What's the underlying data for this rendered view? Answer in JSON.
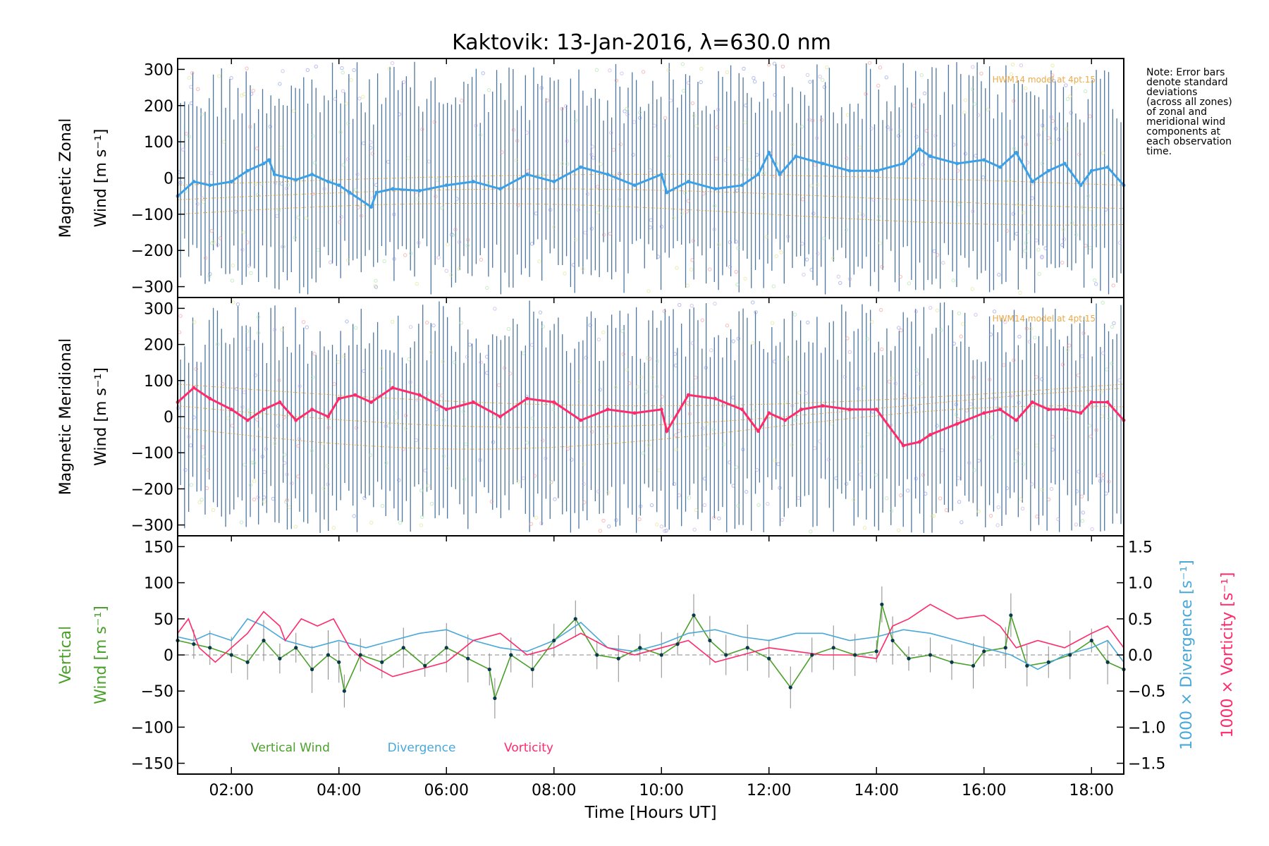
{
  "title": "Kaktovik: 13-Jan-2016, λ=630.0 nm",
  "note_lines": [
    "Note: Error bars",
    "denote standard",
    "deviations",
    "(across all zones)",
    "of zonal and",
    "meridional wind",
    "components at",
    "each observation",
    "time."
  ],
  "model_label": "HWM14 model at 4pt.15",
  "colors": {
    "zonal": "#3aa0e8",
    "zonal_dark": "#1010d0",
    "meridional": "#ff2a6a",
    "meridional_dark": "#cc0000",
    "errbar": "#2f5f8f",
    "vertical": "#4aa02a",
    "divergence": "#4aa8d8",
    "vorticity": "#ff2a6a",
    "model": "#e8941a",
    "points": "#0a3a4a"
  },
  "chart_data": [
    {
      "type": "line",
      "panel": "zonal",
      "ylabel_lines": [
        "Magnetic Zonal",
        "Wind [m s⁻¹]"
      ],
      "ylim": [
        -330,
        330
      ],
      "yticks": [
        "300",
        "200",
        "100",
        "0",
        "−100",
        "−200",
        "−300"
      ],
      "ytick_values": [
        300,
        200,
        100,
        0,
        -100,
        -200,
        -300
      ],
      "xlim": [
        1.0,
        18.6
      ],
      "series": [
        {
          "x": [
            1.0,
            1.3,
            1.6,
            2.0,
            2.3,
            2.6,
            2.7,
            2.8,
            3.2,
            3.5,
            3.8,
            4.0,
            4.2,
            4.6,
            4.7,
            5.0,
            5.5,
            6.0,
            6.5,
            7.0,
            7.5,
            8.0,
            8.5,
            9.0,
            9.5,
            10.0,
            10.1,
            10.5,
            11.0,
            11.5,
            11.8,
            12.0,
            12.2,
            12.5,
            13.0,
            13.5,
            14.0,
            14.5,
            14.8,
            15.0,
            15.5,
            16.0,
            16.3,
            16.6,
            16.9,
            17.2,
            17.5,
            17.8,
            18.0,
            18.3,
            18.6
          ],
          "y": [
            -50,
            -10,
            -20,
            -10,
            20,
            40,
            50,
            10,
            -5,
            10,
            -10,
            -20,
            -40,
            -80,
            -40,
            -30,
            -35,
            -20,
            -10,
            -30,
            10,
            -10,
            30,
            10,
            -20,
            10,
            -40,
            -10,
            -30,
            -20,
            10,
            70,
            10,
            60,
            40,
            20,
            20,
            40,
            80,
            60,
            40,
            50,
            30,
            70,
            -10,
            20,
            40,
            -20,
            20,
            30,
            -20
          ]
        }
      ]
    },
    {
      "type": "line",
      "panel": "meridional",
      "ylabel_lines": [
        "Magnetic Meridional",
        "Wind [m s⁻¹]"
      ],
      "ylim": [
        -330,
        330
      ],
      "yticks": [
        "300",
        "200",
        "100",
        "0",
        "−100",
        "−200",
        "−300"
      ],
      "ytick_values": [
        300,
        200,
        100,
        0,
        -100,
        -200,
        -300
      ],
      "xlim": [
        1.0,
        18.6
      ],
      "series": [
        {
          "x": [
            1.0,
            1.3,
            1.6,
            2.0,
            2.3,
            2.6,
            2.9,
            3.2,
            3.5,
            3.8,
            4.0,
            4.3,
            4.6,
            5.0,
            5.5,
            6.0,
            6.5,
            7.0,
            7.5,
            8.0,
            8.5,
            9.0,
            9.5,
            10.0,
            10.1,
            10.5,
            11.0,
            11.5,
            11.8,
            12.0,
            12.3,
            12.6,
            13.0,
            13.5,
            14.0,
            14.5,
            14.8,
            15.0,
            15.5,
            16.0,
            16.3,
            16.6,
            16.9,
            17.2,
            17.5,
            17.8,
            18.0,
            18.3,
            18.6
          ],
          "y": [
            40,
            80,
            50,
            20,
            -10,
            20,
            40,
            -10,
            20,
            0,
            50,
            60,
            40,
            80,
            60,
            20,
            40,
            0,
            50,
            40,
            -10,
            20,
            10,
            20,
            -40,
            60,
            50,
            20,
            -40,
            10,
            -10,
            20,
            30,
            20,
            20,
            -80,
            -70,
            -50,
            -20,
            10,
            20,
            -10,
            40,
            20,
            20,
            10,
            40,
            40,
            -10
          ]
        }
      ]
    },
    {
      "type": "line",
      "panel": "vertical",
      "ylabel_lines": [
        "Vertical",
        "Wind [m s⁻¹]"
      ],
      "ylabel_right_lines": [
        "1000 × Divergence [s⁻¹]",
        "1000 × Vorticity [s⁻¹]"
      ],
      "ylim": [
        -165,
        165
      ],
      "yticks": [
        "150",
        "100",
        "50",
        "0",
        "−50",
        "−100",
        "−150"
      ],
      "ytick_values": [
        150,
        100,
        50,
        0,
        -50,
        -100,
        -150
      ],
      "y2lim": [
        -1.65,
        1.65
      ],
      "y2ticks": [
        "1.5",
        "1.0",
        "0.5",
        "0.0",
        "−0.5",
        "−1.0",
        "−1.5"
      ],
      "y2tick_values": [
        1.5,
        1.0,
        0.5,
        0.0,
        -0.5,
        -1.0,
        -1.5
      ],
      "xlim": [
        1.0,
        18.6
      ],
      "xticks": [
        "02:00",
        "04:00",
        "06:00",
        "08:00",
        "10:00",
        "12:00",
        "14:00",
        "16:00",
        "18:00"
      ],
      "xtick_values": [
        2,
        4,
        6,
        8,
        10,
        12,
        14,
        16,
        18
      ],
      "xlabel": "Time [Hours UT]",
      "series": [
        {
          "name": "Vertical Wind",
          "x": [
            1.0,
            1.3,
            1.6,
            2.0,
            2.3,
            2.6,
            2.9,
            3.2,
            3.5,
            3.8,
            4.0,
            4.1,
            4.4,
            4.8,
            5.2,
            5.6,
            6.0,
            6.4,
            6.8,
            6.9,
            7.2,
            7.6,
            8.0,
            8.4,
            8.8,
            9.2,
            9.6,
            10.0,
            10.3,
            10.6,
            10.9,
            11.2,
            11.6,
            12.0,
            12.4,
            12.8,
            13.2,
            13.6,
            14.0,
            14.1,
            14.3,
            14.6,
            15.0,
            15.4,
            15.8,
            16.0,
            16.4,
            16.5,
            16.8,
            17.2,
            17.6,
            18.0,
            18.3,
            18.6
          ],
          "y": [
            20,
            15,
            10,
            0,
            -10,
            20,
            -5,
            10,
            -20,
            0,
            -10,
            -50,
            0,
            -10,
            10,
            -15,
            10,
            -5,
            -20,
            -60,
            0,
            -20,
            20,
            50,
            0,
            -5,
            10,
            0,
            15,
            55,
            20,
            0,
            10,
            -5,
            -45,
            0,
            10,
            0,
            5,
            70,
            20,
            -5,
            0,
            -10,
            -15,
            5,
            10,
            55,
            -15,
            -10,
            0,
            20,
            -10,
            -20
          ]
        },
        {
          "name": "Divergence",
          "x": [
            1.0,
            1.3,
            1.6,
            2.0,
            2.3,
            2.6,
            3.0,
            3.5,
            4.0,
            4.5,
            5.0,
            5.5,
            6.0,
            6.5,
            7.0,
            7.5,
            8.0,
            8.5,
            9.0,
            9.5,
            10.0,
            10.5,
            11.0,
            11.5,
            12.0,
            12.5,
            13.0,
            13.5,
            14.0,
            14.5,
            15.0,
            15.5,
            16.0,
            16.5,
            17.0,
            17.5,
            18.0,
            18.3,
            18.6
          ],
          "y": [
            0.25,
            0.2,
            0.3,
            0.2,
            0.5,
            0.4,
            0.2,
            0.1,
            0.2,
            0.1,
            0.2,
            0.3,
            0.35,
            0.2,
            0.1,
            0.05,
            0.2,
            0.45,
            0.1,
            0.05,
            0.15,
            0.3,
            0.35,
            0.25,
            0.2,
            0.3,
            0.3,
            0.2,
            0.25,
            0.35,
            0.3,
            0.2,
            0.1,
            0.0,
            -0.2,
            0.0,
            0.1,
            0.2,
            -0.1
          ]
        },
        {
          "name": "Vorticity",
          "x": [
            1.0,
            1.2,
            1.4,
            1.7,
            2.0,
            2.3,
            2.6,
            2.9,
            3.0,
            3.3,
            3.6,
            3.9,
            4.2,
            4.5,
            5.0,
            5.5,
            6.0,
            6.5,
            7.0,
            7.5,
            8.0,
            8.5,
            9.0,
            9.5,
            10.0,
            10.5,
            11.0,
            11.5,
            12.0,
            12.5,
            13.0,
            13.5,
            14.0,
            14.3,
            14.6,
            15.0,
            15.5,
            16.0,
            16.3,
            16.6,
            17.0,
            17.5,
            18.0,
            18.3,
            18.6
          ],
          "y": [
            0.3,
            0.5,
            0.1,
            -0.1,
            0.1,
            0.3,
            0.6,
            0.4,
            0.2,
            0.5,
            0.4,
            0.5,
            0.1,
            -0.1,
            -0.3,
            -0.2,
            -0.1,
            0.2,
            0.3,
            0.0,
            0.1,
            0.3,
            0.1,
            0.0,
            0.1,
            0.2,
            -0.1,
            0.0,
            0.1,
            0.05,
            0.0,
            0.0,
            -0.05,
            0.4,
            0.5,
            0.7,
            0.5,
            0.55,
            0.4,
            0.1,
            0.2,
            0.1,
            0.3,
            0.4,
            0.1
          ]
        }
      ],
      "legend": [
        "Vertical Wind",
        "Divergence",
        "Vorticity"
      ],
      "legend_placement": "bottom-left"
    }
  ]
}
